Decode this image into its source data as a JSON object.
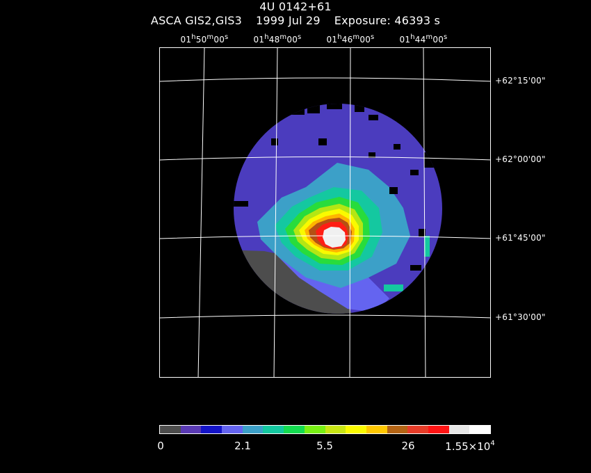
{
  "title": {
    "object": "4U 0142+61",
    "instrument": "ASCA GIS2,GIS3",
    "date": "1999 Jul 29",
    "exposure": "Exposure: 46393 s"
  },
  "ra_axis": [
    {
      "h": "01",
      "m": "50",
      "s": "00"
    },
    {
      "h": "01",
      "m": "48",
      "s": "00"
    },
    {
      "h": "01",
      "m": "46",
      "s": "00"
    },
    {
      "h": "01",
      "m": "44",
      "s": "00"
    }
  ],
  "dec_axis": [
    "+62°15'00\"",
    "+62°00'00\"",
    "+61°45'00\"",
    "+61°30'00\""
  ],
  "colorbar": {
    "colors": [
      "#4d4d4d",
      "#5a3ab4",
      "#1414c8",
      "#6464f0",
      "#3ca0c8",
      "#14c8a0",
      "#14dc50",
      "#78f014",
      "#c8e614",
      "#fafa00",
      "#ffc800",
      "#b46414",
      "#e63c28",
      "#ff1414",
      "#e6e6e6",
      "#ffffff"
    ],
    "labels": [
      "0",
      "2.1",
      "5.5",
      "26"
    ],
    "max_label": "1.55×10",
    "max_exp": "4"
  },
  "image_colors": {
    "background": "#000000",
    "low": "#4d4d4d",
    "diffuse": "#4b3cbe",
    "edge": "#1e1ee6",
    "mid": "#6464f0",
    "cyan": "#3ca0c8",
    "teal": "#14c8a0",
    "green": "#28dc3c",
    "lime": "#b4e614",
    "yellow": "#fafa00",
    "orange": "#ffb400",
    "brown": "#b45014",
    "red": "#ff1e14",
    "core": "#f0f0f0"
  }
}
